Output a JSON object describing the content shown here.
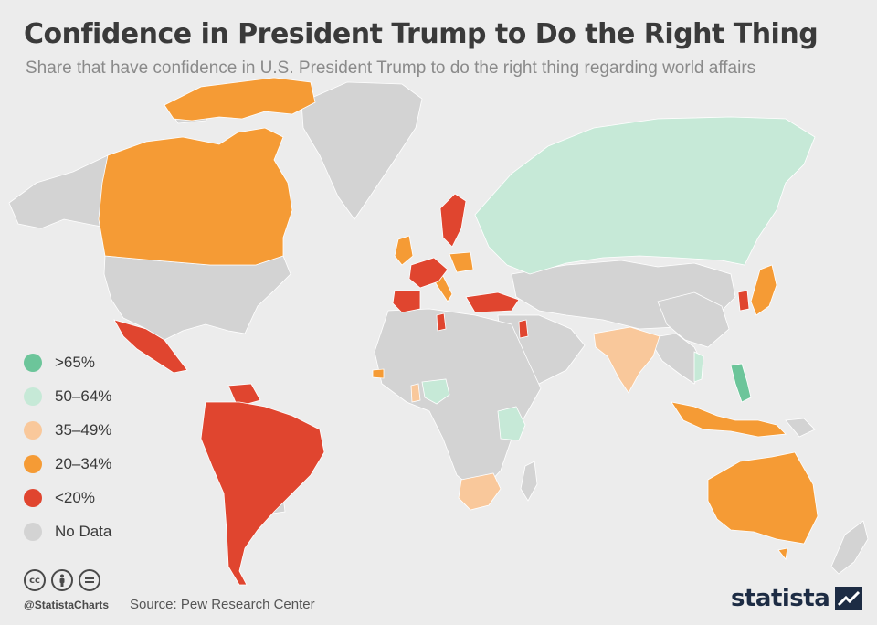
{
  "header": {
    "title": "Confidence in President Trump to Do the Right Thing",
    "subtitle": "Share that have confidence in U.S. President Trump to do the right thing regarding world affairs"
  },
  "colors": {
    "background": "#ececec",
    "no_data": "#d3d3d3",
    "gt65": "#6cc59a",
    "r50_64": "#c6e9d7",
    "r35_49": "#f9c89b",
    "r20_34": "#f59b35",
    "lt20": "#e0452f"
  },
  "legend": [
    {
      "label": ">65%",
      "color": "#6cc59a"
    },
    {
      "label": "50–64%",
      "color": "#c6e9d7"
    },
    {
      "label": "35–49%",
      "color": "#f9c89b"
    },
    {
      "label": "20–34%",
      "color": "#f59b35"
    },
    {
      "label": "<20%",
      "color": "#e0452f"
    },
    {
      "label": "No Data",
      "color": "#d3d3d3"
    }
  ],
  "footer": {
    "handle": "@StatistaCharts",
    "source": "Source: Pew Research Center",
    "brand": "statista",
    "license_icons": [
      "cc-icon",
      "by-icon",
      "nd-icon"
    ]
  }
}
